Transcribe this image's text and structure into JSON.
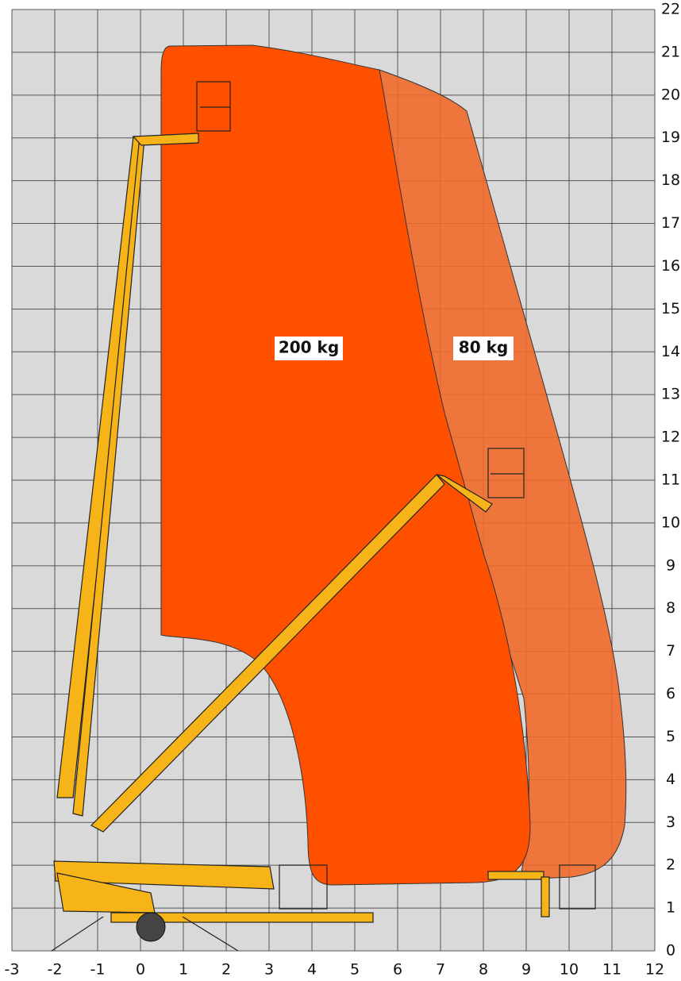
{
  "chart_data": {
    "type": "range",
    "xlim": [
      -3,
      12
    ],
    "ylim": [
      0,
      22
    ],
    "xticks": [
      -3,
      -2,
      -1,
      0,
      1,
      2,
      3,
      4,
      5,
      6,
      7,
      8,
      9,
      10,
      11,
      12
    ],
    "yticks": [
      0,
      1,
      2,
      3,
      4,
      5,
      6,
      7,
      8,
      9,
      10,
      11,
      12,
      13,
      14,
      15,
      16,
      17,
      18,
      19,
      20,
      21,
      22
    ],
    "grid": true,
    "zones": [
      {
        "name": "200 kg",
        "color": "#ff5000"
      },
      {
        "name": "80 kg",
        "color": "#ef6a2a"
      }
    ]
  }
}
